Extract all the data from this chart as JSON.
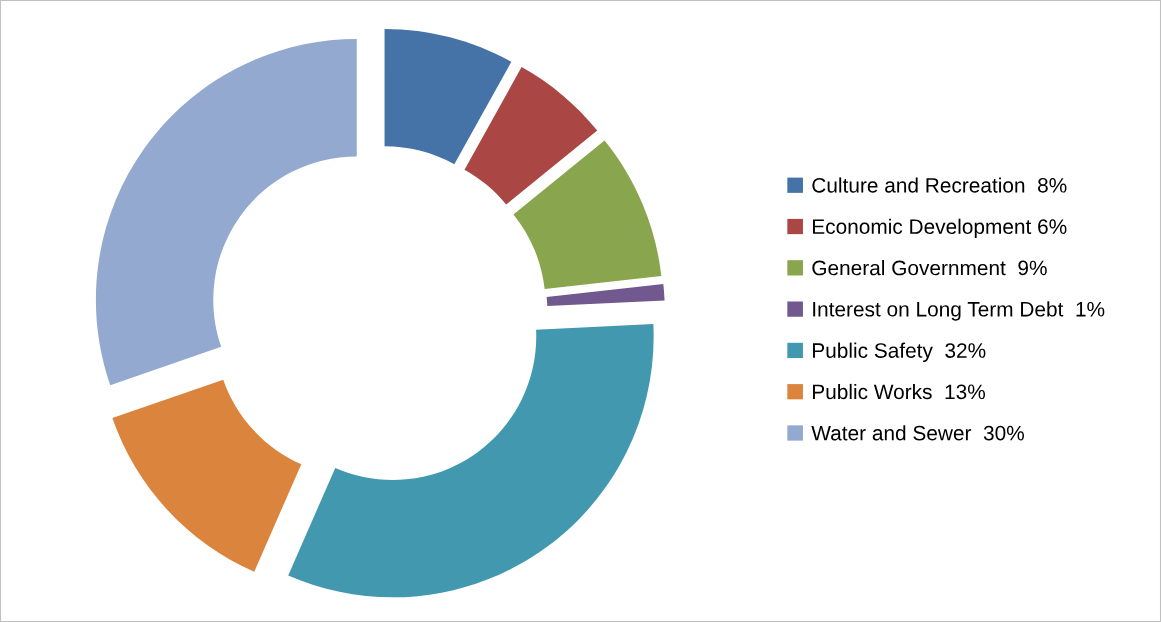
{
  "chart_data": {
    "type": "donut",
    "categories": [
      "Culture and Recreation  8%",
      "Economic Development 6%",
      "General Government  9%",
      "Interest on Long Term Debt  1%",
      "Public Safety  32%",
      "Public Works  13%",
      "Water and Sewer  30%"
    ],
    "values": [
      8,
      6,
      9,
      1,
      32,
      13,
      30
    ],
    "colors": [
      "#4572a7",
      "#aa4643",
      "#89a54e",
      "#71588f",
      "#4198af",
      "#db843d",
      "#93a9cf"
    ],
    "legend": "right"
  }
}
